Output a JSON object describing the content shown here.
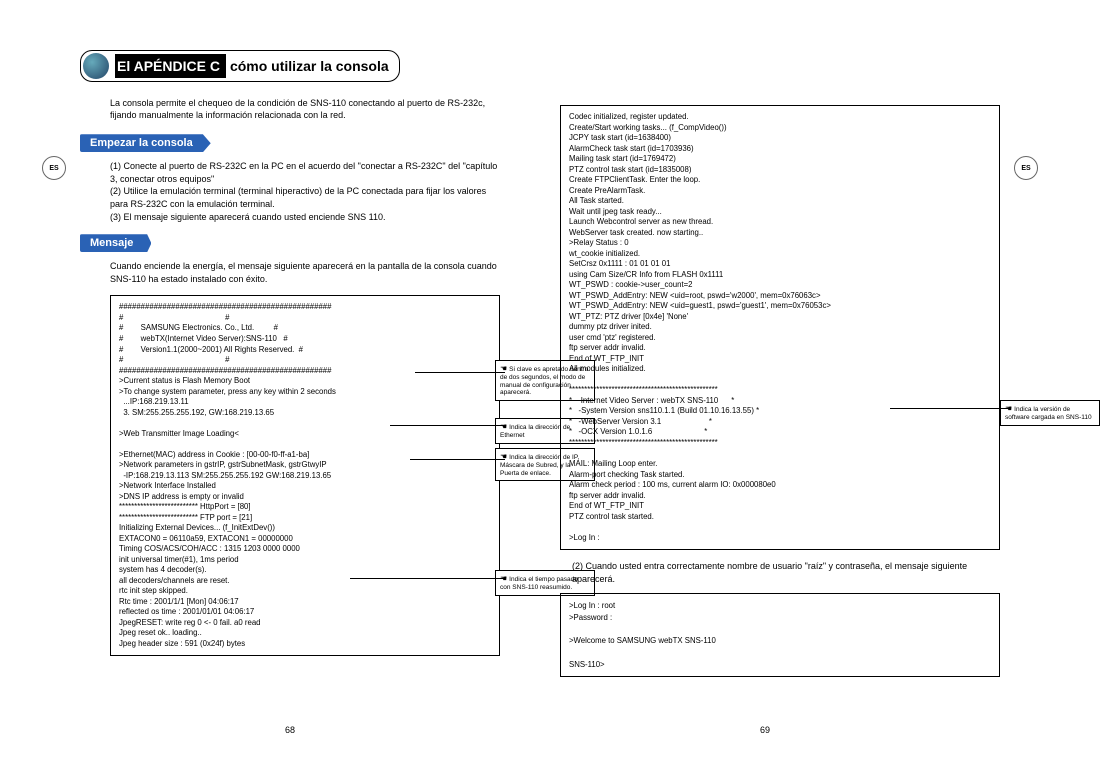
{
  "lang_badge": "ES",
  "appendix": {
    "dark": "El APÉNDICE C",
    "light": "cómo utilizar la consola"
  },
  "intro": "La consola permite el chequeo de la condición de SNS-110 conectando al puerto de RS-232c, fijando manualmente la información relacionada con la red.",
  "section_start": "Empezar la consola",
  "start_steps": {
    "s1": "(1) Conecte al puerto de RS-232C en la PC en el acuerdo del \"conectar a RS-232C\" del \"capítulo 3, conectar otros equipos\"",
    "s2": "(2) Utilice la emulación terminal (terminal hiperactivo) de la PC conectada para fijar los valores para RS-232C con la emulación terminal.",
    "s3": "(3) El mensaje siguiente aparecerá cuando usted enciende SNS 110."
  },
  "section_msg": "Mensaje",
  "msg_intro": "Cuando enciende la energía, el mensaje siguiente aparecerá en la pantalla de la consola cuando SNS-110 ha estado instalado con éxito.",
  "console_left": [
    "#################################################",
    "#                                               #",
    "#        SAMSUNG Electronics. Co., Ltd.         #",
    "#        webTX(Internet Video Server):SNS-110   #",
    "#        Version1.1(2000~2001) All Rights Reserved.  #",
    "#                                               #",
    "#################################################",
    ">Current status is Flash Memory Boot",
    ">To change system parameter, press any key within 2 seconds",
    "  ...IP:168.219.13.11",
    "  3. SM:255.255.255.192, GW:168.219.13.65",
    "",
    ">Web Transmitter Image Loading<",
    "",
    ">Ethernet(MAC) address in Cookie : [00-00-f0-ff-a1-ba]",
    ">Network parameters in gstrIP, gstrSubnetMask, gstrGtwyIP",
    "  -IP:168.219.13.113 SM:255.255.255.192 GW:168.219.13.65",
    ">Network Interface Installed",
    ">DNS IP address is empty or invalid",
    "************************** HttpPort = [80]",
    "************************** FTP port = [21]",
    "Initializing External Devices... (f_InitExtDev())",
    "EXTACON0 = 06110a59, EXTACON1 = 00000000",
    "Timing COS/ACS/COH/ACC : 1315 1203 0000 0000",
    "init universal timer(#1), 1ms period",
    "system has 4 decoder(s).",
    "all decoders/channels are reset.",
    "rtc init step skipped.",
    "Rtc time : 2001/1/1 [Mon] 04:06:17",
    "reflected os time : 2001/01/01 04:06:17",
    "JpegRESET: write reg 0 <- 0 fail. a0 read",
    "Jpeg reset ok.. loading..",
    "Jpeg header size : 591 (0x24f) bytes"
  ],
  "console_right": [
    "Codec initialized, register updated.",
    "Create/Start working tasks... (f_CompVideo())",
    "JCPY task start (id=1638400)",
    "AlarmCheck task start (id=1703936)",
    "Mailing task start (id=1769472)",
    "PTZ control task start (id=1835008)",
    "Create FTPClientTask. Enter the loop.",
    "Create PreAlarmTask.",
    "All Task started.",
    "Wait until jpeg task ready...",
    "Launch Webcontrol server as new thread.",
    "WebServer task created. now starting..",
    ">Relay Status : 0",
    "wt_cookie initialized.",
    "SetCrsz 0x1111 : 01 01 01 01",
    "using Cam Size/CR Info from FLASH 0x1111",
    "WT_PSWD : cookie->user_count=2",
    "WT_PSWD_AddEntry: NEW <uid=root, pswd='w2000', mem=0x76063c>",
    "WT_PSWD_AddEntry: NEW <uid=guest1, pswd='guest1', mem=0x76053c>",
    "WT_PTZ: PTZ driver [0x4e] 'None'",
    "dummy ptz driver inited.",
    "user cmd 'ptz' registered.",
    "ftp server addr invalid.",
    "End of WT_FTP_INIT",
    "All modules initialized.",
    "",
    "*************************************************",
    "*    Internet Video Server : webTX SNS-110      *",
    "*   -System Version sns110.1.1 (Build 01.10.16.13.55) *",
    "*   -WebServer Version 3.1                      *",
    "*   -OCX Version 1.0.1.6                        *",
    "*************************************************",
    "",
    "MAIL: Mailing Loop enter.",
    "Alarm-port checking Task started.",
    "Alarm check period : 100 ms, current alarm IO: 0x000080e0",
    "ftp server addr invalid.",
    "End of WT_FTP_INIT",
    "PTZ control task started.",
    "",
    ">Log In :"
  ],
  "right_body": "(2) Cuando usted entra correctamente nombre de usuario \"raíz\" y contraseña, el mensaje siguiente aparecerá.",
  "login_box": [
    ">Log In : root",
    ">Password :",
    "",
    ">Welcome to SAMSUNG webTX SNS-110",
    "",
    "SNS-110>"
  ],
  "annot1": "Si clave es apretado dentro de dos segundos, el modo de manual de configuración aparecerá.",
  "annot2": "Indica la dirección de Ethernet",
  "annot3": "Indica la dirección de IP, Máscara de Subred, y la Puerta de enlace.",
  "annot4": "Indica el tiempo pasado con SNS-110 reasumido.",
  "annot_right": "Indica la versión de software cargada en SNS-110",
  "page_left_num": "68",
  "page_right_num": "69"
}
